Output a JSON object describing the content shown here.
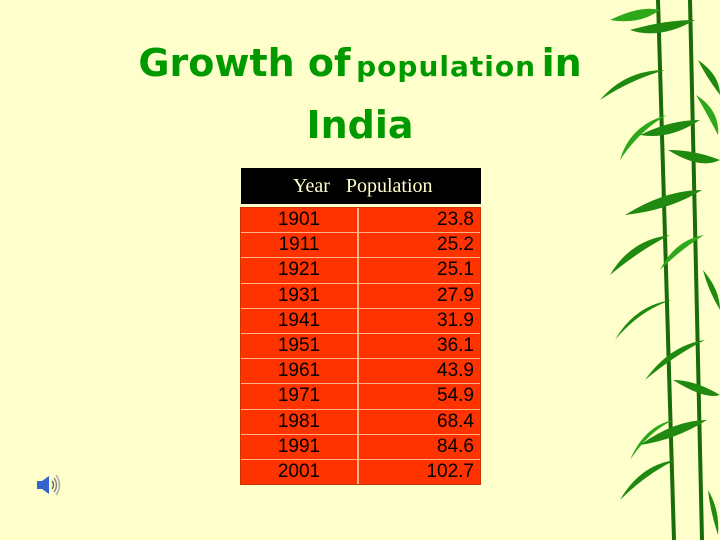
{
  "title": {
    "part1": "Growth of",
    "part2": "population",
    "part3": "in",
    "line2": "India"
  },
  "table": {
    "headers": {
      "year": "Year",
      "population": "Population"
    },
    "rows": [
      {
        "year": "1901",
        "population": "23.8"
      },
      {
        "year": "1911",
        "population": "25.2"
      },
      {
        "year": "1921",
        "population": "25.1"
      },
      {
        "year": "1931",
        "population": "27.9"
      },
      {
        "year": "1941",
        "population": "31.9"
      },
      {
        "year": "1951",
        "population": "36.1"
      },
      {
        "year": "1961",
        "population": "43.9"
      },
      {
        "year": "1971",
        "population": "54.9"
      },
      {
        "year": "1981",
        "population": "68.4"
      },
      {
        "year": "1991",
        "population": "84.6"
      },
      {
        "year": "2001",
        "population": "102.7"
      }
    ]
  },
  "colors": {
    "background": "#ffffcc",
    "title": "#009900",
    "table_fill": "#ff3300",
    "header_fill": "#000000"
  },
  "icons": {
    "audio": "speaker-icon",
    "decoration": "bamboo-leaves"
  }
}
